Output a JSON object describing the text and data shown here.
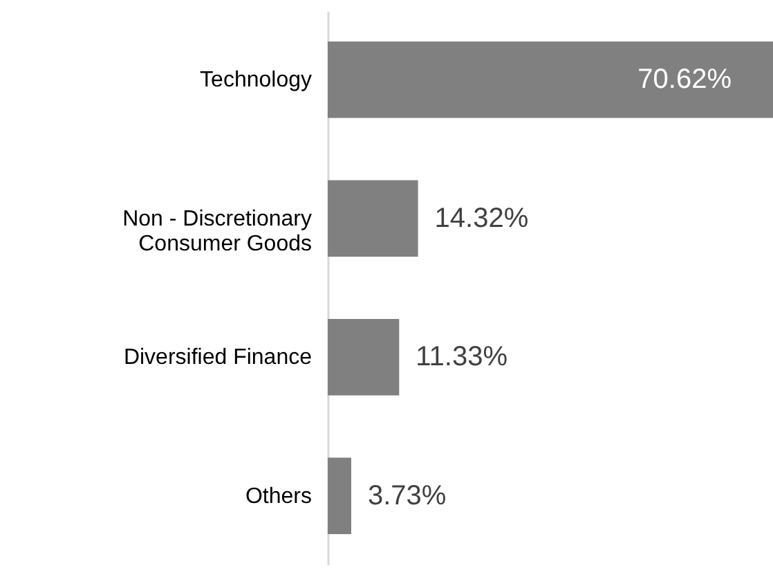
{
  "chart_data": {
    "type": "bar",
    "orientation": "horizontal",
    "categories": [
      "Technology",
      "Non - Discretionary Consumer Goods",
      "Diversified Finance",
      "Others"
    ],
    "values": [
      70.62,
      14.32,
      11.33,
      3.73
    ],
    "value_labels": [
      "70.62%",
      "14.32%",
      "11.33%",
      "3.73%"
    ],
    "color": "#808080",
    "grid": false
  }
}
